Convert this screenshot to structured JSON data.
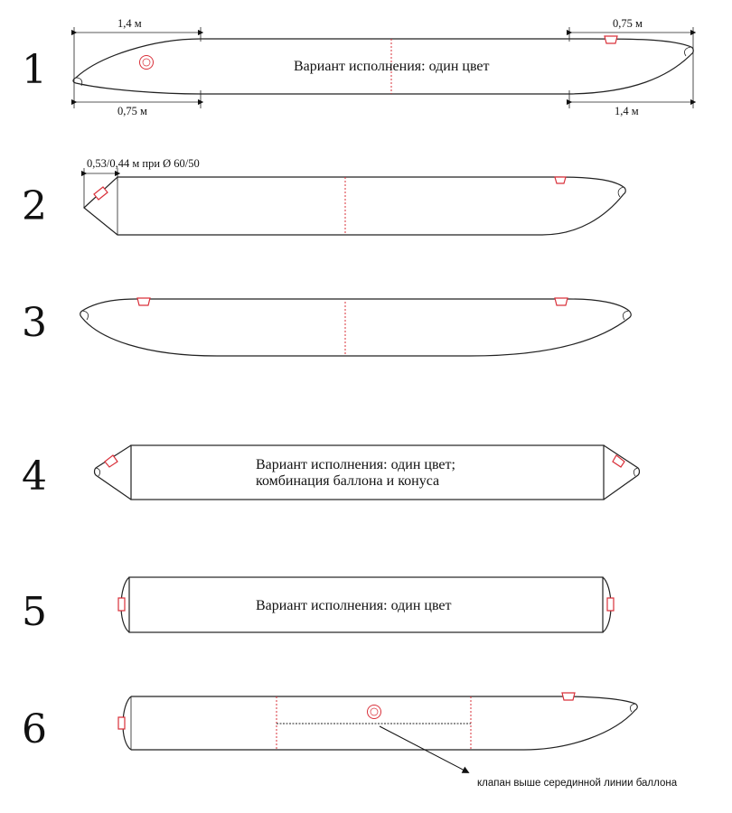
{
  "rows": [
    {
      "number": "1",
      "caption": "Вариант исполнения: один цвет"
    },
    {
      "number": "2"
    },
    {
      "number": "3"
    },
    {
      "number": "4",
      "caption_line1": "Вариант исполнения: один цвет;",
      "caption_line2": "комбинация баллона и конуса"
    },
    {
      "number": "5",
      "caption": "Вариант исполнения: один цвет"
    },
    {
      "number": "6",
      "note": "клапан выше серединной линии баллона"
    }
  ],
  "dimensions": {
    "top_left": "1,4 м",
    "top_right": "0,75 м",
    "bottom_left": "0,75 м",
    "bottom_right": "1,4 м",
    "row2_label": "0,53/0,44 м при Ø 60/50"
  },
  "colors": {
    "outline": "#222222",
    "accent": "#d9303a"
  }
}
